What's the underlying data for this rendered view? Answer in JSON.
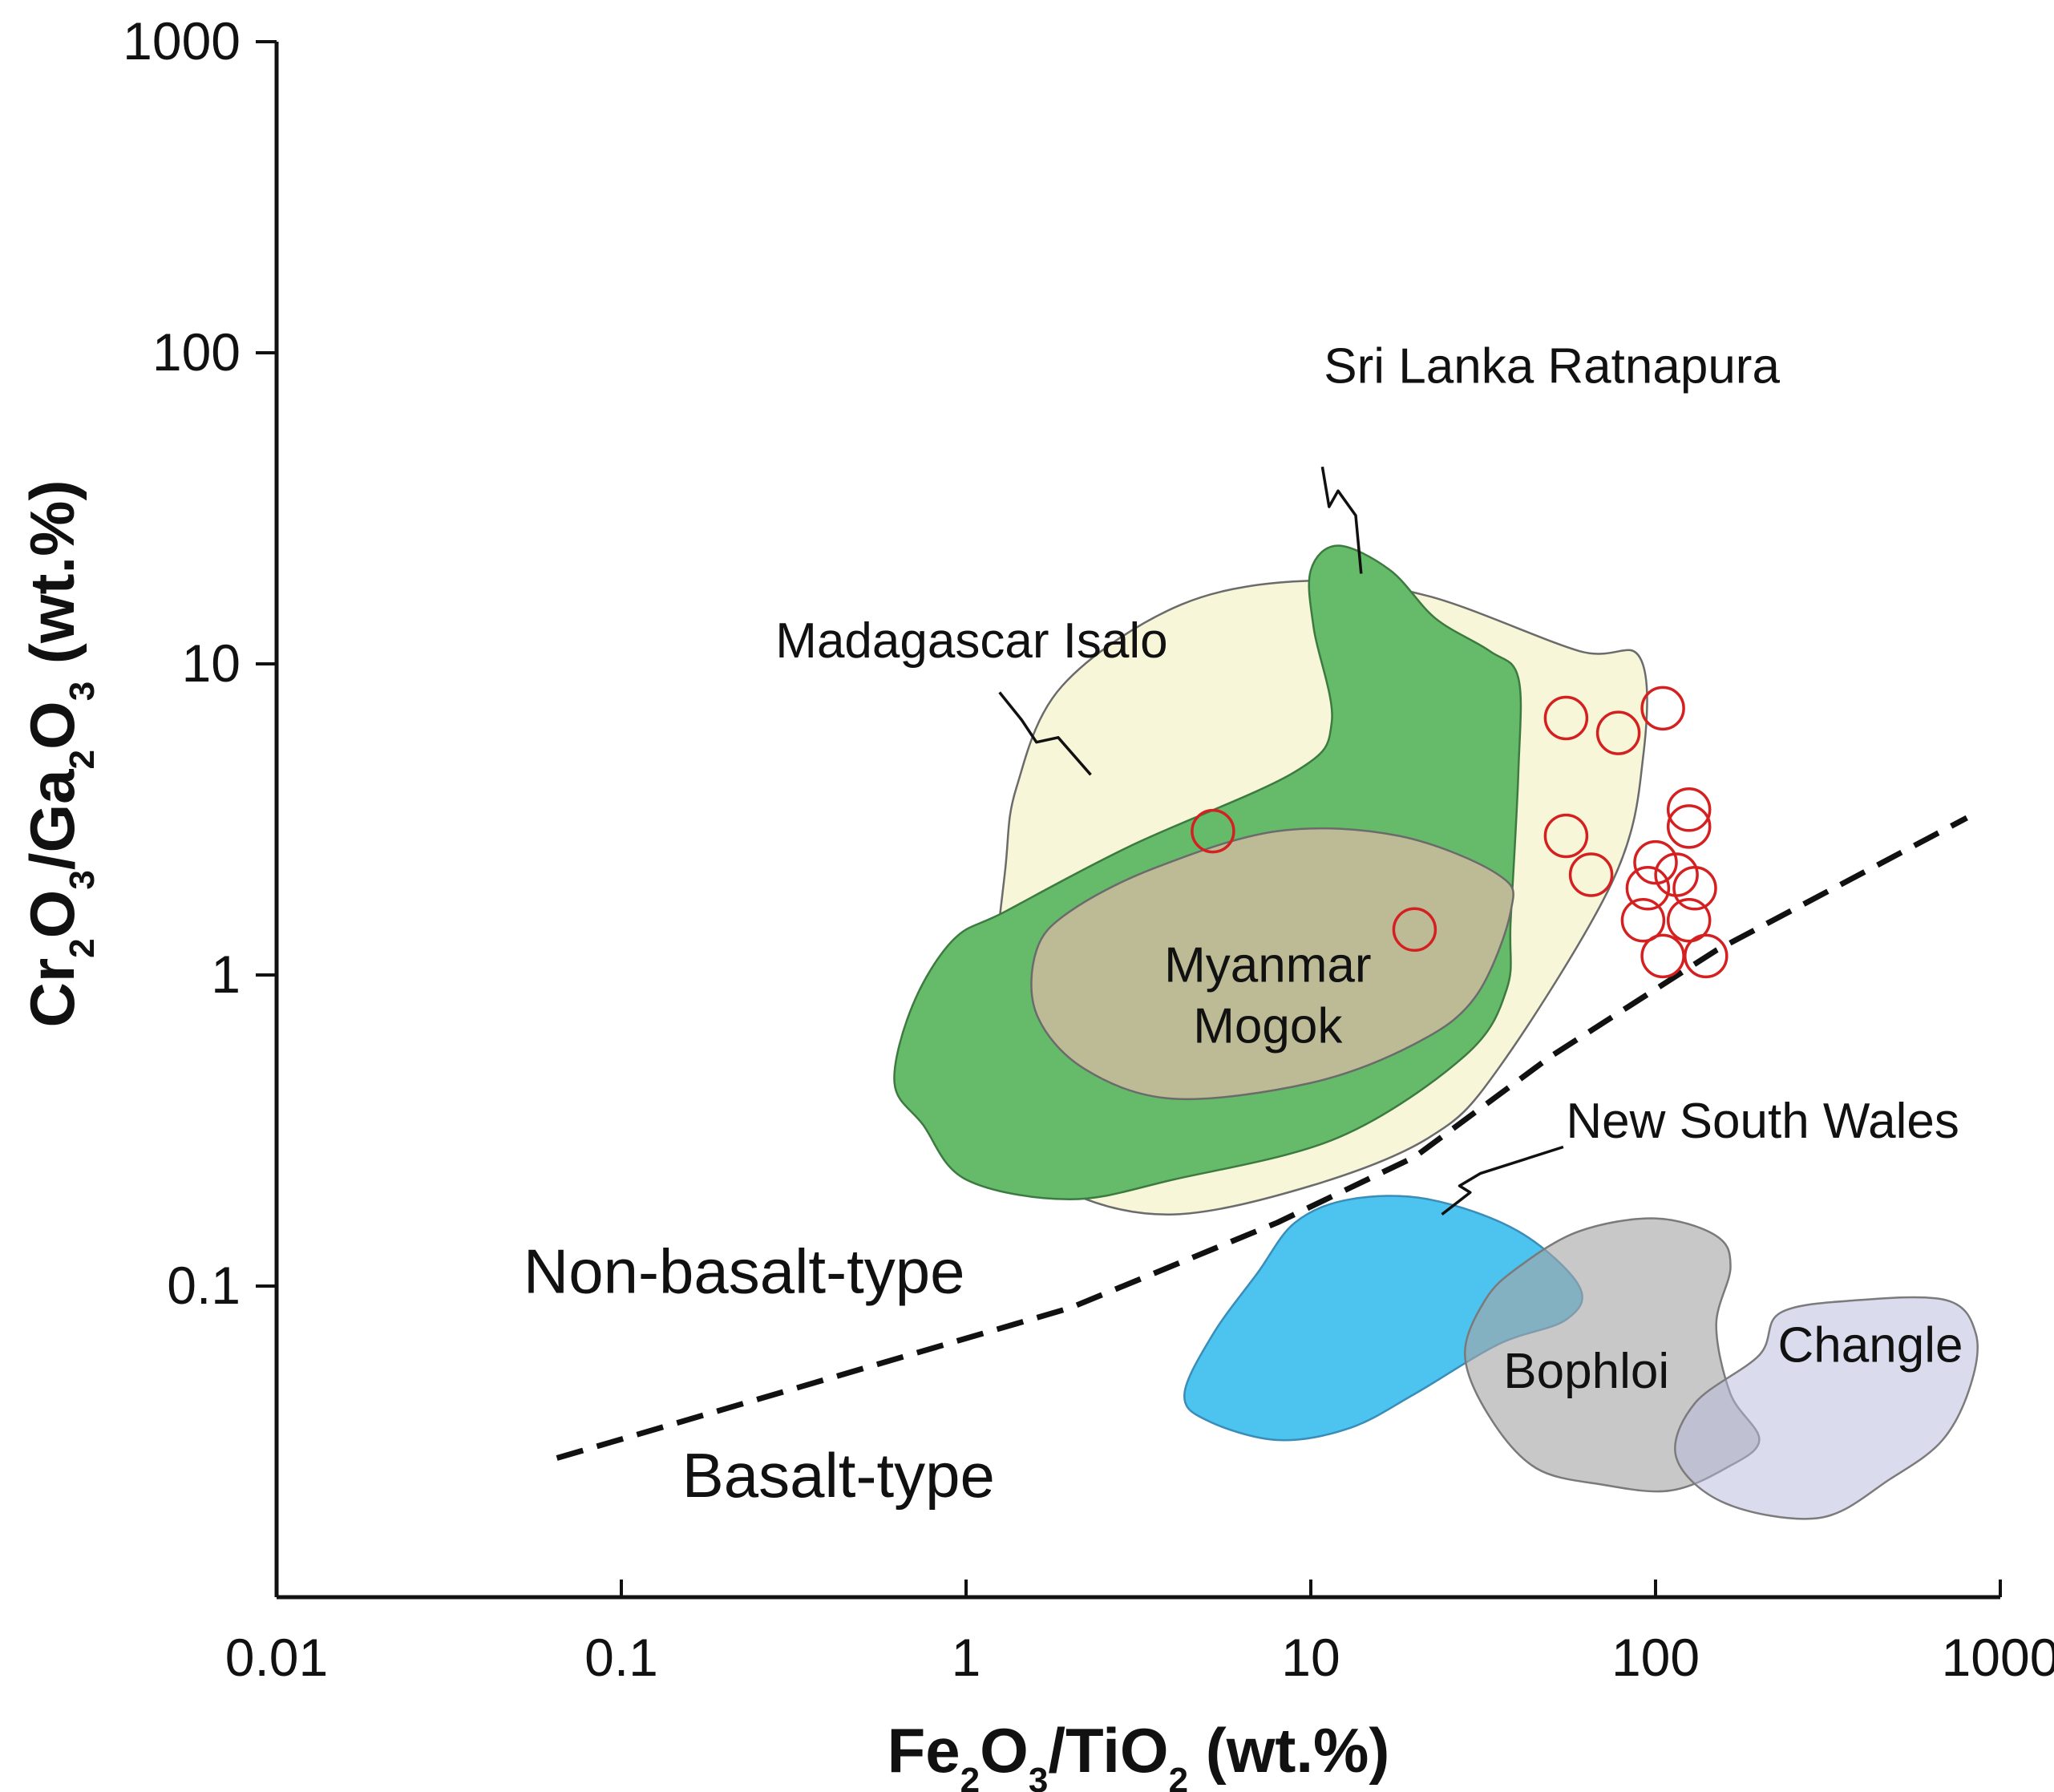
{
  "chart_data": {
    "type": "scatter",
    "x_scale": "log",
    "y_scale": "log",
    "xlim": [
      0.01,
      1000
    ],
    "ylim": [
      0.01,
      1000
    ],
    "x_ticks": [
      {
        "value": 0.01,
        "label": "0.01"
      },
      {
        "value": 0.1,
        "label": "0.1"
      },
      {
        "value": 1,
        "label": "1"
      },
      {
        "value": 10,
        "label": "10"
      },
      {
        "value": 100,
        "label": "100"
      },
      {
        "value": 1000,
        "label": "1000"
      }
    ],
    "y_ticks": [
      {
        "value": 0.1,
        "label": "0.1"
      },
      {
        "value": 1,
        "label": "1"
      },
      {
        "value": 10,
        "label": "10"
      },
      {
        "value": 100,
        "label": "100"
      },
      {
        "value": 1000,
        "label": "1000"
      }
    ],
    "xlabel": {
      "parts": [
        {
          "t": "Fe"
        },
        {
          "t": "2",
          "sub": true
        },
        {
          "t": "O"
        },
        {
          "t": "3",
          "sub": true
        },
        {
          "t": "/TiO"
        },
        {
          "t": "2",
          "sub": true
        },
        {
          "t": " (wt.%)"
        }
      ]
    },
    "ylabel": {
      "parts": [
        {
          "t": "Cr"
        },
        {
          "t": "2",
          "sub": true
        },
        {
          "t": "O"
        },
        {
          "t": "3",
          "sub": true
        },
        {
          "t": "/Ga"
        },
        {
          "t": "2",
          "sub": true
        },
        {
          "t": "O"
        },
        {
          "t": "3",
          "sub": true
        },
        {
          "t": " (wt.%)"
        }
      ]
    },
    "samples": {
      "name": "samples",
      "marker": "open-circle",
      "color": "#d42020",
      "points": [
        [
          5.2,
          2.9
        ],
        [
          20,
          1.4
        ],
        [
          55,
          6.7
        ],
        [
          78,
          6.0
        ],
        [
          105,
          7.2
        ],
        [
          55,
          2.8
        ],
        [
          65,
          2.1
        ],
        [
          125,
          3.4
        ],
        [
          125,
          3.0
        ],
        [
          100,
          2.3
        ],
        [
          115,
          2.1
        ],
        [
          95,
          1.9
        ],
        [
          130,
          1.9
        ],
        [
          125,
          1.5
        ],
        [
          92,
          1.5
        ],
        [
          105,
          1.15
        ],
        [
          140,
          1.15
        ]
      ]
    },
    "boundary": {
      "name": "basalt / non-basalt boundary",
      "style": "dashed",
      "points": [
        [
          0.065,
          0.028
        ],
        [
          2,
          0.085
        ],
        [
          8,
          0.16
        ],
        [
          20,
          0.26
        ],
        [
          50,
          0.55
        ],
        [
          150,
          1.2
        ],
        [
          800,
          3.2
        ]
      ]
    },
    "class_labels": [
      {
        "text": "Non-basalt-type",
        "x": 0.052,
        "y": 0.095
      },
      {
        "text": "Basalt-type",
        "x": 0.15,
        "y": 0.021
      }
    ],
    "regions": [
      {
        "name": "Madagascar Isalo",
        "fill": "#f7f6d8",
        "stroke": "#6b6b6b",
        "label": [
          "Madagascar Isalo"
        ],
        "label_pos": [
          0.28,
          10.5
        ],
        "label_anchor": "start",
        "leader": [
          [
            2.3,
            4.4
          ],
          [
            1.85,
            5.8
          ],
          [
            1.6,
            5.6
          ],
          [
            1.45,
            6.6
          ],
          [
            1.25,
            8.1
          ]
        ],
        "polygon": [
          [
            1.4,
            4.0
          ],
          [
            1.9,
            8.5
          ],
          [
            4.2,
            15.5
          ],
          [
            10,
            18.5
          ],
          [
            22,
            16.5
          ],
          [
            60,
            11.0
          ],
          [
            90,
            10.5
          ],
          [
            92,
            5.0
          ],
          [
            75,
            2.0
          ],
          [
            35,
            0.5
          ],
          [
            22,
            0.3
          ],
          [
            10,
            0.21
          ],
          [
            4.0,
            0.17
          ],
          [
            2.0,
            0.2
          ],
          [
            1.3,
            0.3
          ],
          [
            1.2,
            0.8
          ],
          [
            1.3,
            2.2
          ]
        ]
      },
      {
        "name": "Sri Lanka Ratnapura",
        "fill": "#66bb6a",
        "stroke": "#3d7a40",
        "label": [
          "Sri Lanka Ratnapura"
        ],
        "label_pos": [
          50,
          80
        ],
        "label_anchor": "middle",
        "leader": [
          [
            14,
            19.5
          ],
          [
            13.5,
            30
          ],
          [
            12,
            36
          ],
          [
            11.3,
            32
          ],
          [
            10.8,
            43
          ]
        ],
        "polygon": [
          [
            10,
            20
          ],
          [
            12,
            24
          ],
          [
            17,
            20
          ],
          [
            23,
            14
          ],
          [
            33,
            11
          ],
          [
            40,
            9
          ],
          [
            40,
            4.5
          ],
          [
            38,
            1.5
          ],
          [
            37,
            0.9
          ],
          [
            28,
            0.55
          ],
          [
            12,
            0.3
          ],
          [
            4.0,
            0.22
          ],
          [
            2.0,
            0.19
          ],
          [
            1.0,
            0.22
          ],
          [
            0.75,
            0.33
          ],
          [
            0.62,
            0.45
          ],
          [
            0.7,
            0.8
          ],
          [
            0.92,
            1.3
          ],
          [
            1.3,
            1.6
          ],
          [
            3.0,
            2.6
          ],
          [
            9.0,
            4.5
          ],
          [
            11.5,
            6.5
          ],
          [
            10.2,
            13
          ]
        ]
      },
      {
        "name": "Myanmar Mogok",
        "fill": "#bdbb96",
        "stroke": "#6b6b6b",
        "label": [
          "Myanmar",
          "Mogok"
        ],
        "label_pos": [
          7.5,
          0.95
        ],
        "label_anchor": "middle",
        "leader": null,
        "polygon": [
          [
            2.0,
            1.6
          ],
          [
            3.5,
            2.2
          ],
          [
            8.0,
            2.9
          ],
          [
            18,
            2.8
          ],
          [
            35,
            2.1
          ],
          [
            38,
            1.6
          ],
          [
            30,
            0.85
          ],
          [
            20,
            0.6
          ],
          [
            10,
            0.45
          ],
          [
            4.0,
            0.4
          ],
          [
            2.2,
            0.5
          ],
          [
            1.6,
            0.75
          ],
          [
            1.6,
            1.2
          ]
        ]
      },
      {
        "name": "New South Wales",
        "fill": "#4dc3ef",
        "stroke": "#3a8db8",
        "label": [
          "New South Wales"
        ],
        "label_pos": [
          55,
          0.3
        ],
        "label_anchor": "start",
        "leader": [
          [
            24,
            0.17
          ],
          [
            29,
            0.2
          ],
          [
            27,
            0.21
          ],
          [
            31,
            0.23
          ],
          [
            54,
            0.28
          ]
        ],
        "polygon": [
          [
            9,
            0.16
          ],
          [
            13,
            0.19
          ],
          [
            22,
            0.19
          ],
          [
            40,
            0.15
          ],
          [
            60,
            0.1
          ],
          [
            55,
            0.078
          ],
          [
            35,
            0.065
          ],
          [
            20,
            0.045
          ],
          [
            13,
            0.035
          ],
          [
            8,
            0.032
          ],
          [
            5,
            0.037
          ],
          [
            4.3,
            0.045
          ],
          [
            5.2,
            0.07
          ],
          [
            7,
            0.11
          ]
        ]
      },
      {
        "name": "Bophloi",
        "fill": "#a6a6a6",
        "fill_opacity": 0.62,
        "stroke": "#7a7a7a",
        "label": [
          "Bophloi"
        ],
        "label_pos": [
          63,
          0.047
        ],
        "label_anchor": "middle",
        "leader": null,
        "polygon": [
          [
            40,
            0.115
          ],
          [
            60,
            0.15
          ],
          [
            100,
            0.165
          ],
          [
            150,
            0.145
          ],
          [
            165,
            0.115
          ],
          [
            150,
            0.075
          ],
          [
            165,
            0.045
          ],
          [
            200,
            0.032
          ],
          [
            160,
            0.026
          ],
          [
            110,
            0.022
          ],
          [
            70,
            0.023
          ],
          [
            45,
            0.026
          ],
          [
            33,
            0.038
          ],
          [
            28,
            0.06
          ],
          [
            32,
            0.09
          ]
        ]
      },
      {
        "name": "Changle",
        "fill": "#b5b8da",
        "fill_opacity": 0.5,
        "stroke": "#7b7b7b",
        "label": [
          "Changle"
        ],
        "label_pos": [
          420,
          0.057
        ],
        "label_anchor": "middle",
        "leader": null,
        "polygon": [
          [
            200,
            0.06
          ],
          [
            230,
            0.082
          ],
          [
            380,
            0.09
          ],
          [
            700,
            0.09
          ],
          [
            850,
            0.07
          ],
          [
            820,
            0.048
          ],
          [
            680,
            0.032
          ],
          [
            480,
            0.024
          ],
          [
            300,
            0.018
          ],
          [
            160,
            0.02
          ],
          [
            115,
            0.028
          ],
          [
            130,
            0.042
          ]
        ]
      }
    ]
  }
}
